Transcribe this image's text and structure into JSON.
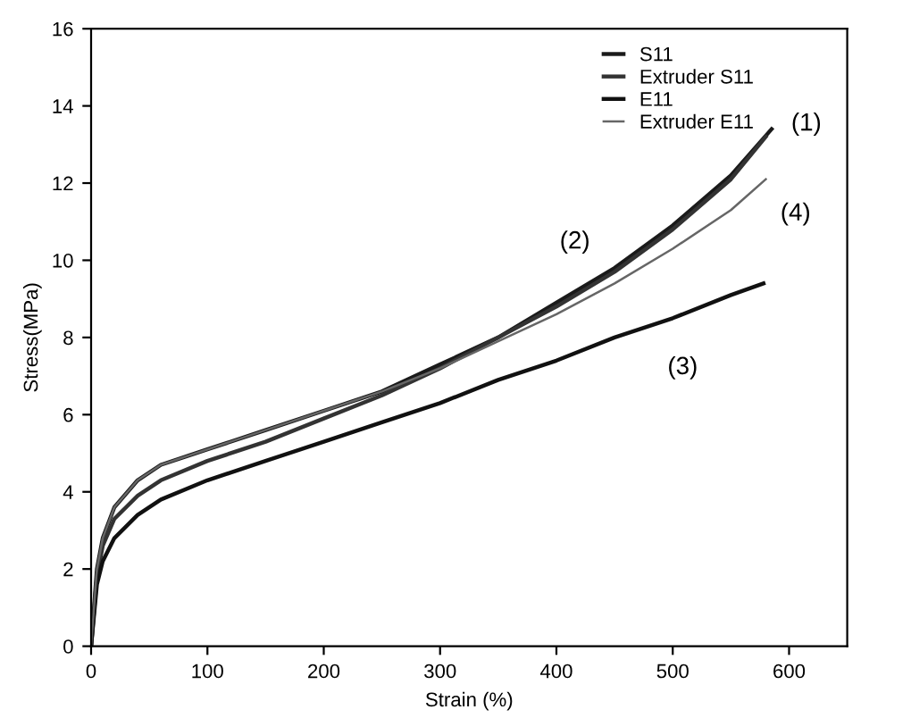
{
  "chart_data": {
    "type": "line",
    "xlabel": "Strain (%)",
    "ylabel": "Stress(MPa)",
    "xlim": [
      0,
      650
    ],
    "ylim": [
      0,
      16
    ],
    "xticks": [
      0,
      100,
      200,
      300,
      400,
      500,
      600
    ],
    "yticks": [
      0,
      2,
      4,
      6,
      8,
      10,
      12,
      14,
      16
    ],
    "grid": false,
    "legend": "top right",
    "marker": "none",
    "line_style": "solid",
    "series": [
      {
        "name": "S11",
        "color": "#1a1a1a",
        "x": [
          0,
          5,
          10,
          20,
          40,
          60,
          100,
          150,
          200,
          250,
          300,
          350,
          400,
          450,
          500,
          550,
          585
        ],
        "values": [
          0,
          2.0,
          2.8,
          3.6,
          4.3,
          4.7,
          5.1,
          5.6,
          6.1,
          6.6,
          7.3,
          8.0,
          8.9,
          9.8,
          10.9,
          12.2,
          13.4
        ]
      },
      {
        "name": "Extruder S11",
        "color": "#333333",
        "x": [
          0,
          5,
          10,
          20,
          40,
          60,
          100,
          150,
          200,
          250,
          300,
          350,
          400,
          450,
          500,
          550,
          580
        ],
        "values": [
          0,
          1.8,
          2.6,
          3.3,
          3.9,
          4.3,
          4.8,
          5.3,
          5.9,
          6.5,
          7.2,
          8.0,
          8.8,
          9.7,
          10.8,
          12.1,
          13.2
        ]
      },
      {
        "name": "E11",
        "color": "#111111",
        "x": [
          0,
          5,
          10,
          20,
          40,
          60,
          100,
          150,
          200,
          250,
          300,
          350,
          400,
          450,
          500,
          550,
          578
        ],
        "values": [
          0,
          1.6,
          2.2,
          2.8,
          3.4,
          3.8,
          4.3,
          4.8,
          5.3,
          5.8,
          6.3,
          6.9,
          7.4,
          8.0,
          8.5,
          9.1,
          9.4
        ]
      },
      {
        "name": "Extruder E11",
        "color": "#666666",
        "x": [
          0,
          5,
          10,
          20,
          40,
          60,
          100,
          150,
          200,
          250,
          300,
          350,
          400,
          450,
          500,
          550,
          580
        ],
        "values": [
          0,
          2.0,
          2.8,
          3.6,
          4.3,
          4.7,
          5.1,
          5.6,
          6.1,
          6.6,
          7.2,
          7.9,
          8.6,
          9.4,
          10.3,
          11.3,
          12.1
        ]
      }
    ],
    "annotations": [
      "(1)",
      "(2)",
      "(3)",
      "(4)"
    ]
  }
}
